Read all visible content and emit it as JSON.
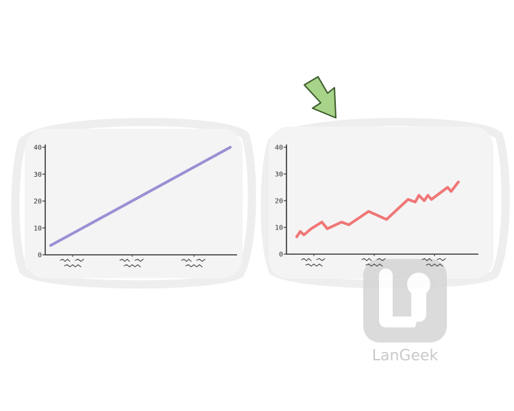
{
  "colors": {
    "card": "#f4f4f4",
    "cardHalo": "#eeeeee",
    "axis": "#333333",
    "squiggle": "#444444",
    "arrowFill": "#a8d48a",
    "arrowStroke": "#3c5b2a",
    "watermark": "#d5d5d5"
  },
  "icons": {
    "arrow": "down-right-arrow-icon",
    "logo": "langeek-logo-icon"
  },
  "chart_data": [
    {
      "type": "line",
      "ylim": [
        0,
        40
      ],
      "yticks": [
        "0",
        "10",
        "20",
        "30",
        "40"
      ],
      "xlabel": "",
      "ylabel": "",
      "xtick_labels": "illegible squiggles",
      "grid": false,
      "series": [
        {
          "color": "#9b8fd4",
          "x": [
            0,
            1
          ],
          "y": [
            3.5,
            40
          ]
        }
      ]
    },
    {
      "type": "line",
      "ylim": [
        0,
        40
      ],
      "yticks": [
        "0",
        "10",
        "20",
        "30",
        "40"
      ],
      "xlabel": "",
      "ylabel": "",
      "xtick_labels": "illegible squiggles",
      "grid": false,
      "series": [
        {
          "color": "#f07676",
          "x": [
            0,
            0.02,
            0.04,
            0.08,
            0.14,
            0.17,
            0.25,
            0.29,
            0.4,
            0.5,
            0.62,
            0.66,
            0.68,
            0.71,
            0.73,
            0.75,
            0.84,
            0.86,
            0.9
          ],
          "y": [
            6.5,
            8.5,
            7.2,
            9.5,
            12,
            9.5,
            12,
            11,
            16,
            13,
            20.5,
            19.5,
            22,
            20,
            22,
            20.5,
            25,
            23.5,
            27
          ]
        }
      ]
    }
  ],
  "watermark": {
    "text": "LanGeek"
  }
}
